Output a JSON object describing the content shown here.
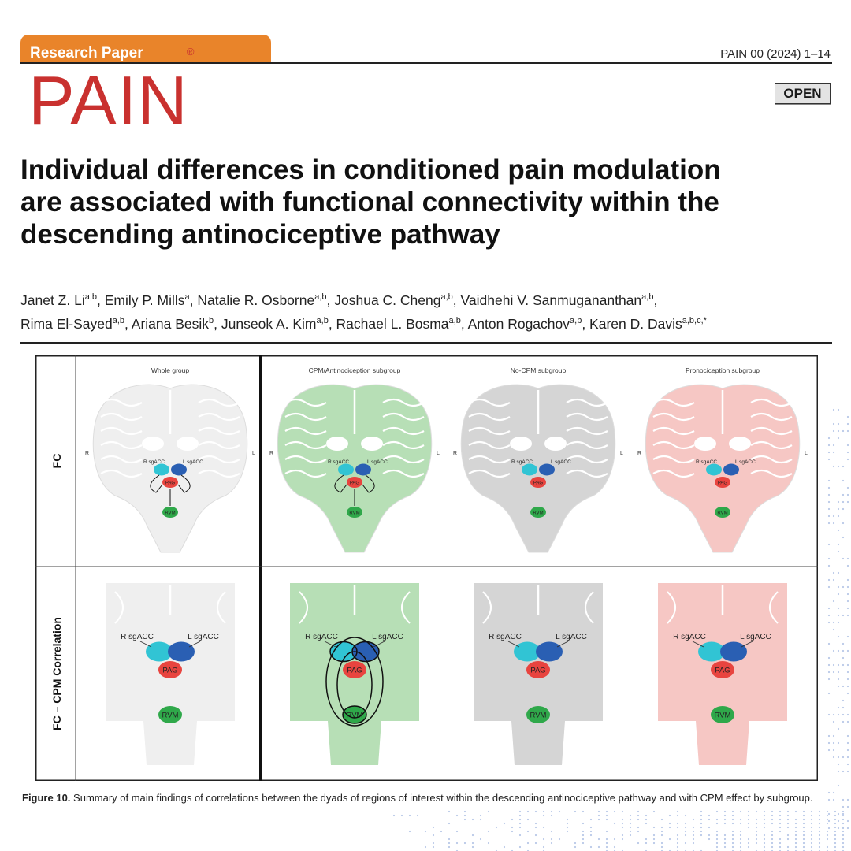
{
  "header": {
    "tab_label": "Research Paper",
    "journal_ref": "PAIN 00 (2024) 1–14",
    "logo_text": "PAIN",
    "logo_mark": "®",
    "open_badge": "OPEN",
    "tab_color": "#e9842a",
    "logo_color": "#c9312f"
  },
  "article": {
    "title": "Individual differences in conditioned pain modulation are associated with functional connectivity within the descending antinociceptive pathway",
    "authors": [
      {
        "name": "Janet Z. Li",
        "aff": "a,b"
      },
      {
        "name": "Emily P. Mills",
        "aff": "a"
      },
      {
        "name": "Natalie R. Osborne",
        "aff": "a,b"
      },
      {
        "name": "Joshua C. Cheng",
        "aff": "a,b"
      },
      {
        "name": "Vaidhehi V. Sanmugananthan",
        "aff": "a,b"
      },
      {
        "name": "Rima El-Sayed",
        "aff": "a,b"
      },
      {
        "name": "Ariana Besik",
        "aff": "b"
      },
      {
        "name": "Junseok A. Kim",
        "aff": "a,b"
      },
      {
        "name": "Rachael L. Bosma",
        "aff": "a,b"
      },
      {
        "name": "Anton Rogachov",
        "aff": "a,b"
      },
      {
        "name": "Karen D. Davis",
        "aff": "a,b,c,*"
      }
    ]
  },
  "figure": {
    "row_labels": [
      "FC",
      "FC – CPM Correlation"
    ],
    "columns": [
      {
        "title": "Whole group",
        "color": "#efefef"
      },
      {
        "title": "CPM/Antinociception subgroup",
        "color": "#b7dfb6"
      },
      {
        "title": "No-CPM subgroup",
        "color": "#d5d5d5"
      },
      {
        "title": "Pronociception subgroup",
        "color": "#f6c7c4"
      }
    ],
    "side_left": "R",
    "side_right": "L",
    "regions": {
      "r_sgacc": "R sgACC",
      "l_sgacc": "L sgACC",
      "pag": "PAG",
      "rvm": "RVM"
    },
    "region_colors": {
      "r_sgacc": "#31c4d4",
      "l_sgacc": "#2a5fb3",
      "pag": "#e8443f",
      "rvm": "#2fa84a"
    },
    "caption_label": "Figure 10.",
    "caption_text": "Summary of main findings of correlations between the dyads of regions of interest within the descending antinociceptive pathway and with CPM effect by subgroup."
  }
}
